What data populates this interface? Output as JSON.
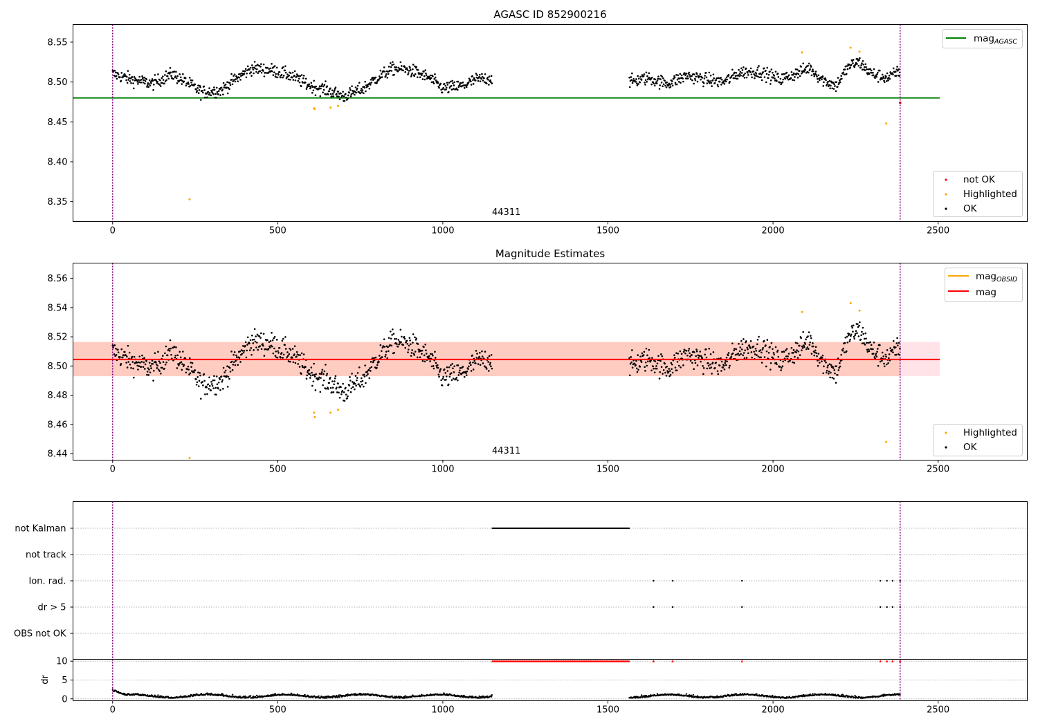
{
  "chart_data": [
    {
      "type": "scatter",
      "title": "AGASC ID 852900216",
      "xlim": [
        -120,
        2770
      ],
      "ylim": [
        8.325,
        8.572
      ],
      "xticks": [
        0,
        500,
        1000,
        1500,
        2000,
        2500
      ],
      "yticks": [
        8.35,
        8.4,
        8.45,
        8.5,
        8.55
      ],
      "ytick_labels": [
        "8.35",
        "8.40",
        "8.45",
        "8.50",
        "8.55"
      ],
      "annotation": "44311",
      "vlines": [
        0,
        2385
      ],
      "hline": {
        "name": "mag$_{AGASC}$",
        "label_main": "mag",
        "label_sub": "AGASC",
        "y": 8.48,
        "x": [
          -120,
          2505
        ],
        "color": "#008000"
      },
      "legend_lines": [
        {
          "label": "mag",
          "sub": "AGASC",
          "color": "#008000"
        }
      ],
      "legend_points": [
        {
          "label": "not OK",
          "color": "#ff0000"
        },
        {
          "label": "Highlighted",
          "color": "#ffa500"
        },
        {
          "label": "OK",
          "color": "#000000"
        }
      ],
      "ok_segments": [
        {
          "x_start": 0,
          "x_end": 1150,
          "anchors": [
            [
              0,
              8.51
            ],
            [
              60,
              8.503
            ],
            [
              120,
              8.498
            ],
            [
              180,
              8.51
            ],
            [
              230,
              8.498
            ],
            [
              270,
              8.487
            ],
            [
              330,
              8.49
            ],
            [
              360,
              8.5
            ],
            [
              420,
              8.517
            ],
            [
              480,
              8.515
            ],
            [
              540,
              8.508
            ],
            [
              600,
              8.495
            ],
            [
              650,
              8.49
            ],
            [
              700,
              8.482
            ],
            [
              760,
              8.492
            ],
            [
              800,
              8.505
            ],
            [
              850,
              8.517
            ],
            [
              900,
              8.515
            ],
            [
              960,
              8.505
            ],
            [
              1000,
              8.492
            ],
            [
              1060,
              8.495
            ],
            [
              1100,
              8.503
            ],
            [
              1150,
              8.505
            ]
          ]
        },
        {
          "x_start": 1565,
          "x_end": 2385,
          "anchors": [
            [
              1565,
              8.5
            ],
            [
              1620,
              8.505
            ],
            [
              1680,
              8.498
            ],
            [
              1740,
              8.508
            ],
            [
              1800,
              8.503
            ],
            [
              1850,
              8.5
            ],
            [
              1900,
              8.512
            ],
            [
              1960,
              8.513
            ],
            [
              2020,
              8.503
            ],
            [
              2080,
              8.512
            ],
            [
              2110,
              8.518
            ],
            [
              2150,
              8.503
            ],
            [
              2190,
              8.495
            ],
            [
              2230,
              8.52
            ],
            [
              2260,
              8.525
            ],
            [
              2300,
              8.51
            ],
            [
              2350,
              8.505
            ],
            [
              2385,
              8.515
            ]
          ]
        }
      ],
      "ok_noise": 0.008,
      "highlighted": [
        [
          233,
          8.353
        ],
        [
          610,
          8.467
        ],
        [
          612,
          8.466
        ],
        [
          660,
          8.468
        ],
        [
          683,
          8.47
        ],
        [
          2088,
          8.537
        ],
        [
          2235,
          8.543
        ],
        [
          2262,
          8.538
        ],
        [
          2343,
          8.448
        ]
      ],
      "not_ok": [
        [
          2385,
          8.474
        ]
      ]
    },
    {
      "type": "scatter",
      "title": "Magnitude Estimates",
      "xlim": [
        -120,
        2770
      ],
      "ylim": [
        8.4355,
        8.5705
      ],
      "xticks": [
        0,
        500,
        1000,
        1500,
        2000,
        2500
      ],
      "yticks": [
        8.44,
        8.46,
        8.48,
        8.5,
        8.52,
        8.54,
        8.56
      ],
      "ytick_labels": [
        "8.44",
        "8.46",
        "8.48",
        "8.50",
        "8.52",
        "8.54",
        "8.56"
      ],
      "annotation": "44311",
      "vlines": [
        0,
        2385
      ],
      "band": {
        "y_low": 8.493,
        "y_high": 8.5165,
        "x": [
          -120,
          2505
        ]
      },
      "mag_line": {
        "y": 8.5045,
        "x": [
          -120,
          2505
        ],
        "color": "#ff0000"
      },
      "legend_lines": [
        {
          "label": "mag",
          "sub": "OBSID",
          "color": "#ffa500"
        },
        {
          "label": "mag",
          "sub": "",
          "color": "#ff0000"
        }
      ],
      "legend_points": [
        {
          "label": "Highlighted",
          "color": "#ffa500"
        },
        {
          "label": "OK",
          "color": "#000000"
        }
      ],
      "highlighted": [
        [
          233,
          8.437
        ],
        [
          610,
          8.468
        ],
        [
          612,
          8.465
        ],
        [
          660,
          8.468
        ],
        [
          683,
          8.47
        ],
        [
          2088,
          8.537
        ],
        [
          2235,
          8.543
        ],
        [
          2262,
          8.538
        ],
        [
          2343,
          8.448
        ]
      ]
    },
    {
      "type": "scatter",
      "title": "",
      "xlim": [
        -120,
        2770
      ],
      "xticks": [
        0,
        500,
        1000,
        1500,
        2000,
        2500
      ],
      "flag_categories": [
        "not Kalman",
        "not track",
        "Ion. rad.",
        "dr > 5",
        "OBS not OK"
      ],
      "not_kalman_range": [
        1150,
        1565
      ],
      "ion_rad_x": [
        1638,
        1696,
        1906,
        2325,
        2345,
        2362,
        2385
      ],
      "dr_gt5_x": [
        1638,
        1696,
        1906,
        2325,
        2345,
        2362,
        2385
      ],
      "dr": {
        "ylabel": "dr",
        "ylim": [
          -0.5,
          10.5
        ],
        "yticks": [
          0,
          5,
          10
        ],
        "ytick_labels": [
          "0",
          "5",
          "10"
        ],
        "clip_value": 10,
        "clipped_x": [
          1638,
          1696,
          1906,
          2325,
          2345,
          2362,
          2385
        ]
      }
    }
  ]
}
